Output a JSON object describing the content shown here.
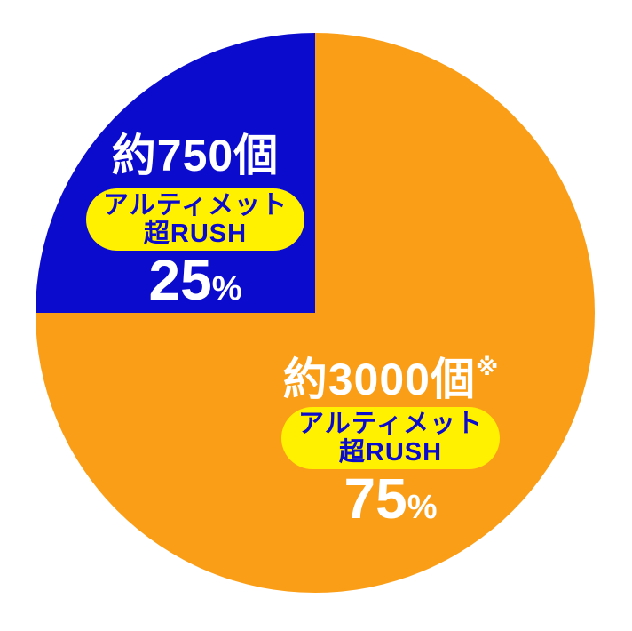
{
  "colors": {
    "blue": "#0b0bce",
    "orange": "#fb9e17",
    "yellow": "#fff100",
    "white": "#ffffff",
    "background": "#ffffff"
  },
  "chart_data": {
    "type": "pie",
    "title": "",
    "legend_position": "none",
    "slices": [
      {
        "name": "アルティメット超RUSH",
        "name_line1": "アルティメット",
        "name_line2": "超RUSH",
        "payout": "約750個",
        "note_mark": "",
        "percent": 25,
        "percent_sign": "%",
        "color_key": "blue",
        "start_angle_deg": 270,
        "end_angle_deg": 360
      },
      {
        "name": "アルティメット超RUSH",
        "name_line1": "アルティメット",
        "name_line2": "超RUSH",
        "payout": "約3000個",
        "note_mark": "※",
        "percent": 75,
        "percent_sign": "%",
        "color_key": "orange",
        "start_angle_deg": 0,
        "end_angle_deg": 270
      }
    ]
  }
}
